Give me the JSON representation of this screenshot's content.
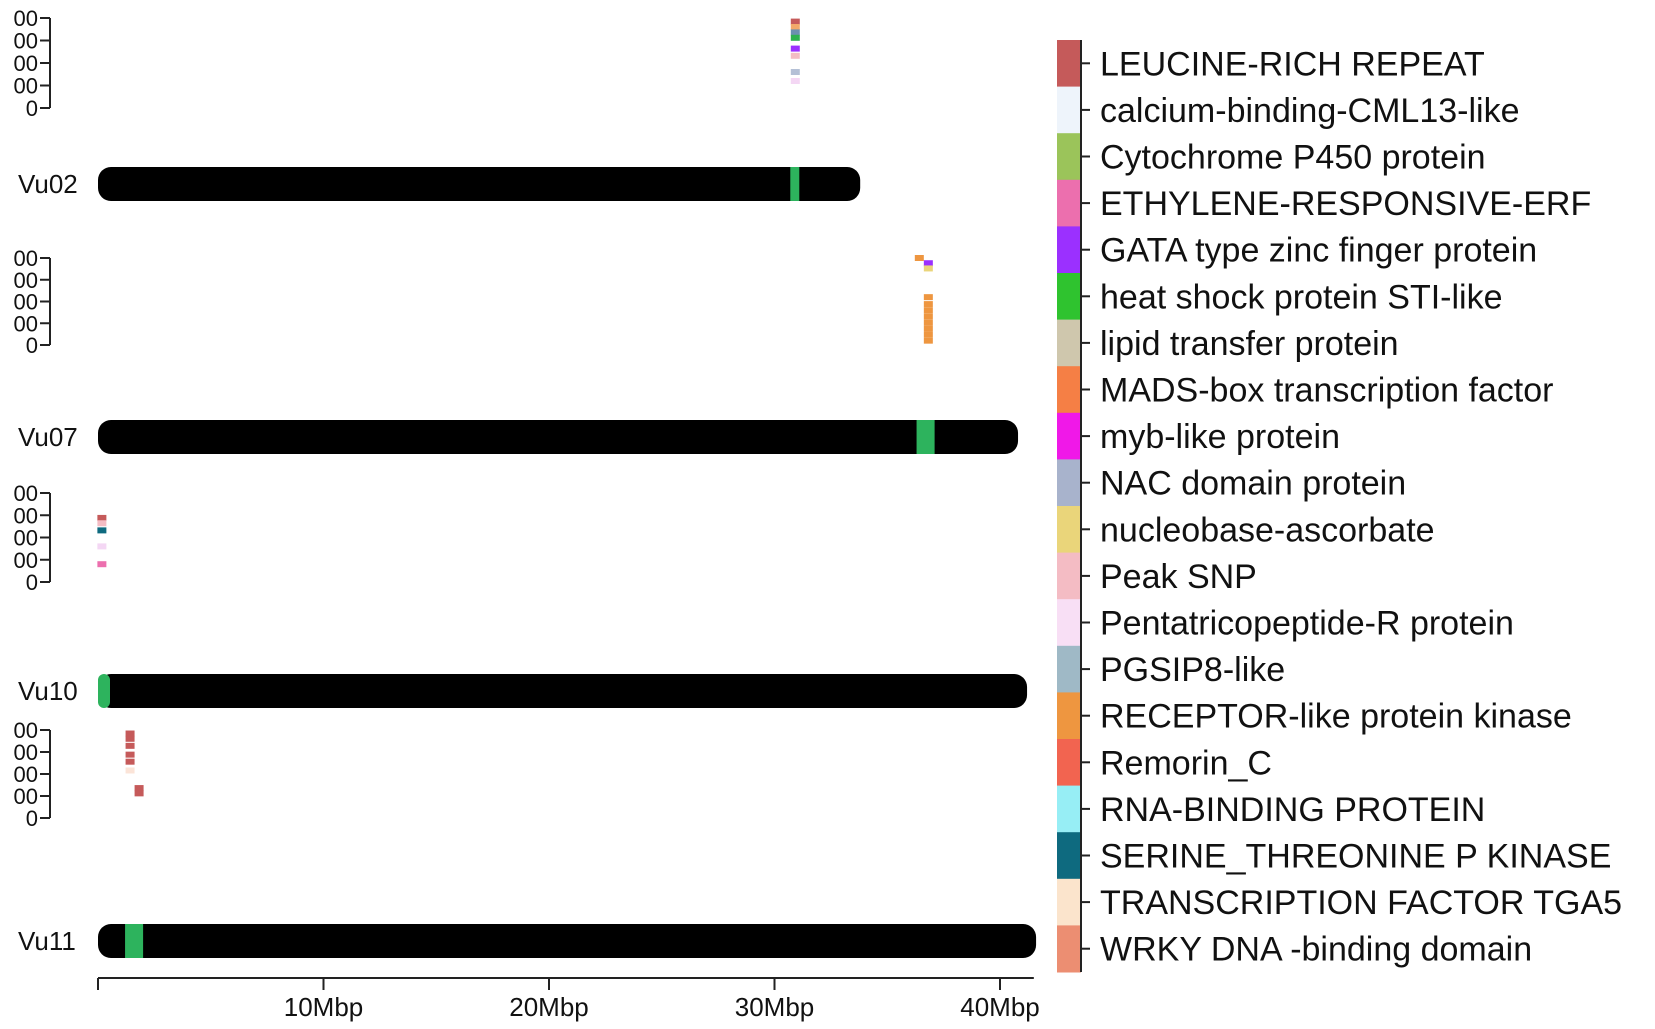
{
  "chart_data": {
    "type": "chromosome_map",
    "x_axis": {
      "ticks": [
        {
          "value": 10,
          "label": "10Mbp"
        },
        {
          "value": 20,
          "label": "20Mbp"
        },
        {
          "value": 30,
          "label": "30Mbp"
        },
        {
          "value": 40,
          "label": "40Mbp"
        }
      ],
      "range": [
        0,
        41.5
      ],
      "unit": "Mbp"
    },
    "track_tick_labels": [
      "00",
      "00",
      "00",
      "00",
      "0"
    ],
    "chromosomes": [
      {
        "name": "Vu02",
        "length": 33.8,
        "highlight": {
          "start": 30.7,
          "end": 31.1,
          "color": "#2db35d"
        },
        "markers": [
          {
            "pos": 30.9,
            "level": 0.96,
            "color": "#c55a5a"
          },
          {
            "pos": 30.9,
            "level": 0.9,
            "color": "#f2a96a"
          },
          {
            "pos": 30.9,
            "level": 0.84,
            "color": "#6c8fb0"
          },
          {
            "pos": 30.9,
            "level": 0.78,
            "color": "#2eb14f"
          },
          {
            "pos": 30.9,
            "level": 0.66,
            "color": "#9b30ff"
          },
          {
            "pos": 30.9,
            "level": 0.58,
            "color": "#f4bcc4"
          },
          {
            "pos": 30.9,
            "level": 0.4,
            "color": "#b4c0d6"
          },
          {
            "pos": 30.9,
            "level": 0.3,
            "color": "#f4d7f4"
          }
        ]
      },
      {
        "name": "Vu07",
        "length": 40.8,
        "highlight": {
          "start": 36.3,
          "end": 37.1,
          "color": "#2db35d"
        },
        "markers": [
          {
            "pos": 36.4,
            "level": 1.0,
            "color": "#ee9640"
          },
          {
            "pos": 36.8,
            "level": 0.94,
            "color": "#9b30ff"
          },
          {
            "pos": 36.8,
            "level": 0.88,
            "color": "#ead57a"
          },
          {
            "pos": 36.8,
            "level": 0.55,
            "color": "#ee9640"
          },
          {
            "pos": 36.8,
            "level": 0.47,
            "color": "#ee9640"
          },
          {
            "pos": 36.8,
            "level": 0.4,
            "color": "#ee9640"
          },
          {
            "pos": 36.8,
            "level": 0.33,
            "color": "#ee9640"
          },
          {
            "pos": 36.8,
            "level": 0.26,
            "color": "#ee9640"
          },
          {
            "pos": 36.8,
            "level": 0.19,
            "color": "#ee9640"
          },
          {
            "pos": 36.8,
            "level": 0.12,
            "color": "#ee9640"
          },
          {
            "pos": 36.8,
            "level": 0.05,
            "color": "#ee9640"
          }
        ]
      },
      {
        "name": "Vu10",
        "length": 41.2,
        "highlight": {
          "start": 0.0,
          "end": 0.35,
          "color": "#2db35d"
        },
        "markers": [
          {
            "pos": 0.15,
            "level": 0.72,
            "color": "#c55a5a"
          },
          {
            "pos": 0.15,
            "level": 0.66,
            "color": "#f4bcc4"
          },
          {
            "pos": 0.15,
            "level": 0.58,
            "color": "#0e6a7f"
          },
          {
            "pos": 0.15,
            "level": 0.4,
            "color": "#f4d7f4"
          },
          {
            "pos": 0.15,
            "level": 0.2,
            "color": "#ec6fae"
          }
        ]
      },
      {
        "name": "Vu11",
        "length": 41.6,
        "highlight": {
          "start": 1.2,
          "end": 2.0,
          "color": "#2db35d"
        },
        "markers": [
          {
            "pos": 1.4,
            "level": 0.96,
            "color": "#c55a5a"
          },
          {
            "pos": 1.4,
            "level": 0.9,
            "color": "#c55a5a"
          },
          {
            "pos": 1.4,
            "level": 0.82,
            "color": "#c55a5a"
          },
          {
            "pos": 1.4,
            "level": 0.72,
            "color": "#c55a5a"
          },
          {
            "pos": 1.4,
            "level": 0.64,
            "color": "#c55a5a"
          },
          {
            "pos": 1.4,
            "level": 0.54,
            "color": "#fbe4d8"
          },
          {
            "pos": 1.8,
            "level": 0.34,
            "color": "#c55a5a"
          },
          {
            "pos": 1.8,
            "level": 0.28,
            "color": "#c55a5a"
          }
        ]
      }
    ],
    "legend": [
      {
        "label": "LEUCINE-RICH REPEAT",
        "color": "#c55a5a"
      },
      {
        "label": "calcium-binding-CML13-like",
        "color": "#eef4fb"
      },
      {
        "label": "Cytochrome P450 protein",
        "color": "#9bc45a"
      },
      {
        "label": "ETHYLENE-RESPONSIVE-ERF",
        "color": "#ec6fae"
      },
      {
        "label": "GATA type zinc finger protein",
        "color": "#9b30ff"
      },
      {
        "label": "heat shock protein STI-like",
        "color": "#2fc32f"
      },
      {
        "label": "lipid transfer protein",
        "color": "#cfc7ad"
      },
      {
        "label": "MADS-box transcription factor",
        "color": "#f57f45"
      },
      {
        "label": "myb-like protein",
        "color": "#f018e8"
      },
      {
        "label": "NAC domain protein",
        "color": "#a8b3cc"
      },
      {
        "label": "nucleobase-ascorbate",
        "color": "#ead57a"
      },
      {
        "label": "Peak SNP",
        "color": "#f4bcc4"
      },
      {
        "label": "Pentatricopeptide-R protein",
        "color": "#f8dff5"
      },
      {
        "label": "PGSIP8-like",
        "color": "#9fb9c6"
      },
      {
        "label": "RECEPTOR-like protein kinase",
        "color": "#ee9640"
      },
      {
        "label": "Remorin_C",
        "color": "#f26450"
      },
      {
        "label": "RNA-BINDING PROTEIN",
        "color": "#97eef5"
      },
      {
        "label": "SERINE_THREONINE P KINASE",
        "color": "#0e6a7f"
      },
      {
        "label": "TRANSCRIPTION FACTOR TGA5",
        "color": "#fbe4cc"
      },
      {
        "label": "WRKY DNA -binding domain",
        "color": "#ec8e72"
      }
    ]
  }
}
